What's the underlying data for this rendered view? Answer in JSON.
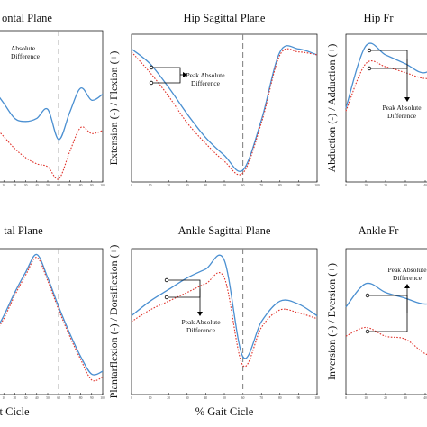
{
  "colors": {
    "solid": "#4a8fd1",
    "dotted": "#e0332b",
    "gait_line": "#888888"
  },
  "panels": [
    {
      "key": "hip_frontal_left",
      "title": "ontal Plane",
      "ylabel": "",
      "xlabel": "",
      "x_ticks": [
        "0",
        "10",
        "20",
        "30",
        "40",
        "50",
        "60",
        "70",
        "80",
        "90",
        "100"
      ],
      "annotation": {
        "text_lines": [
          "Absolute",
          "Difference"
        ],
        "arrow": "none"
      },
      "chart_data": {
        "type": "line",
        "x": [
          0,
          10,
          20,
          30,
          40,
          50,
          60,
          70,
          80,
          90,
          100
        ],
        "xlim": [
          0,
          100
        ],
        "ylim": [
          0,
          100
        ],
        "gait_marker": 60,
        "series": [
          {
            "values": [
              62,
              52,
              42,
              40,
              42,
              48,
              28,
              46,
              62,
              54,
              58
            ],
            "style": "solid"
          },
          {
            "values": [
              38,
              30,
              22,
              16,
              12,
              10,
              2,
              20,
              36,
              32,
              34
            ],
            "style": "dotted"
          }
        ]
      }
    },
    {
      "key": "hip_sagittal",
      "title": "Hip Sagittal Plane",
      "ylabel": "Extension (-) / Flexion (+)",
      "xlabel": "",
      "x_ticks": [
        "0",
        "10",
        "20",
        "30",
        "40",
        "50",
        "60",
        "70",
        "80",
        "90",
        "100"
      ],
      "annotation": {
        "text_lines": [
          "Peak Absolute",
          "Difference"
        ],
        "arrow": "right"
      },
      "chart_data": {
        "type": "line",
        "x": [
          0,
          10,
          20,
          30,
          40,
          50,
          60,
          70,
          80,
          90,
          100
        ],
        "xlim": [
          0,
          100
        ],
        "ylim": [
          0,
          100
        ],
        "gait_marker": 60,
        "series": [
          {
            "values": [
              90,
              80,
              64,
              46,
              30,
              18,
              8,
              42,
              88,
              90,
              86
            ],
            "style": "solid"
          },
          {
            "values": [
              88,
              74,
              58,
              40,
              26,
              14,
              6,
              40,
              86,
              88,
              86
            ],
            "style": "dotted"
          }
        ]
      }
    },
    {
      "key": "hip_frontal",
      "title": "Hip Fr",
      "ylabel": "Abduction (-) / Adduction (+)",
      "xlabel": "",
      "x_ticks": [
        "0",
        "10",
        "20",
        "30",
        "40",
        "50"
      ],
      "annotation": {
        "text_lines": [
          "Peak Absolute",
          "Difference"
        ],
        "arrow": "down"
      },
      "chart_data": {
        "type": "line",
        "x": [
          0,
          10,
          20,
          30,
          40,
          50
        ],
        "xlim": [
          0,
          50
        ],
        "ylim": [
          0,
          100
        ],
        "series": [
          {
            "values": [
              50,
              92,
              86,
              80,
              74,
              86
            ],
            "style": "solid"
          },
          {
            "values": [
              48,
              80,
              78,
              74,
              70,
              72
            ],
            "style": "dotted"
          }
        ]
      }
    },
    {
      "key": "knee_frontal_left",
      "title": "tal Plane",
      "ylabel": "",
      "xlabel": "t Cicle",
      "x_ticks": [
        "0",
        "10",
        "20",
        "30",
        "40",
        "50",
        "60",
        "70",
        "80",
        "90",
        "100"
      ],
      "annotation": {
        "text_lines": [],
        "arrow": "none"
      },
      "chart_data": {
        "type": "line",
        "x": [
          0,
          10,
          20,
          30,
          40,
          50,
          60,
          70,
          80,
          90,
          100
        ],
        "xlim": [
          0,
          100
        ],
        "ylim": [
          0,
          100
        ],
        "gait_marker": 60,
        "series": [
          {
            "values": [
              40,
              54,
              70,
              84,
              96,
              80,
              60,
              42,
              26,
              14,
              16
            ],
            "style": "solid"
          },
          {
            "values": [
              40,
              52,
              68,
              82,
              94,
              78,
              58,
              40,
              24,
              10,
              12
            ],
            "style": "dotted"
          }
        ]
      }
    },
    {
      "key": "ankle_sagittal",
      "title": "Ankle Sagittal Plane",
      "ylabel": "Plantarflexion (-) / Dorsiflexion (+)",
      "xlabel": "% Gait Cicle",
      "x_ticks": [
        "0",
        "10",
        "20",
        "30",
        "40",
        "50",
        "60",
        "70",
        "80",
        "90",
        "100"
      ],
      "annotation": {
        "text_lines": [
          "Peak Absolute",
          "Difference"
        ],
        "arrow": "down"
      },
      "chart_data": {
        "type": "line",
        "x": [
          0,
          10,
          20,
          30,
          40,
          50,
          60,
          70,
          80,
          90,
          100
        ],
        "xlim": [
          0,
          100
        ],
        "ylim": [
          0,
          100
        ],
        "gait_marker": 60,
        "series": [
          {
            "values": [
              54,
              64,
              72,
              80,
              86,
              92,
              26,
              50,
              64,
              62,
              54
            ],
            "style": "solid"
          },
          {
            "values": [
              50,
              58,
              64,
              70,
              76,
              80,
              20,
              46,
              58,
              56,
              52
            ],
            "style": "dotted"
          }
        ]
      }
    },
    {
      "key": "ankle_frontal",
      "title": "Ankle Fr",
      "ylabel": "Inversion (-) / Eversion (+)",
      "xlabel": "",
      "x_ticks": [
        "0",
        "10",
        "20",
        "30",
        "40",
        "50"
      ],
      "annotation": {
        "text_lines": [
          "Peak Absolute",
          "Difference"
        ],
        "arrow": "up"
      },
      "chart_data": {
        "type": "line",
        "x": [
          0,
          10,
          20,
          30,
          40,
          50
        ],
        "xlim": [
          0,
          50
        ],
        "ylim": [
          0,
          100
        ],
        "series": [
          {
            "values": [
              60,
              76,
              70,
              66,
              62,
              66
            ],
            "style": "solid"
          },
          {
            "values": [
              40,
              46,
              40,
              38,
              28,
              24
            ],
            "style": "dotted"
          }
        ]
      }
    }
  ]
}
